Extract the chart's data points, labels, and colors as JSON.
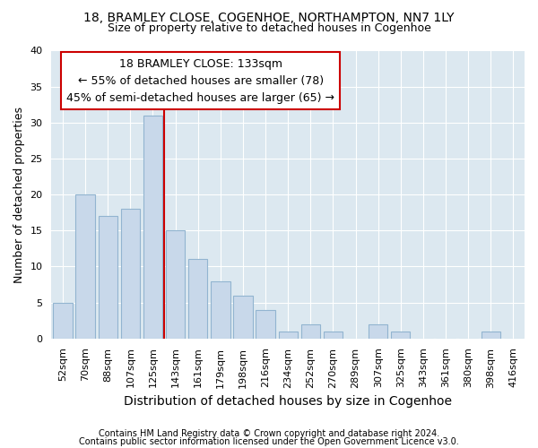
{
  "title": "18, BRAMLEY CLOSE, COGENHOE, NORTHAMPTON, NN7 1LY",
  "subtitle": "Size of property relative to detached houses in Cogenhoe",
  "xlabel": "Distribution of detached houses by size in Cogenhoe",
  "ylabel": "Number of detached properties",
  "bar_labels": [
    "52sqm",
    "70sqm",
    "88sqm",
    "107sqm",
    "125sqm",
    "143sqm",
    "161sqm",
    "179sqm",
    "198sqm",
    "216sqm",
    "234sqm",
    "252sqm",
    "270sqm",
    "289sqm",
    "307sqm",
    "325sqm",
    "343sqm",
    "361sqm",
    "380sqm",
    "398sqm",
    "416sqm"
  ],
  "bar_values": [
    5,
    20,
    17,
    18,
    31,
    15,
    11,
    8,
    6,
    4,
    1,
    2,
    1,
    0,
    2,
    1,
    0,
    0,
    0,
    1,
    0
  ],
  "bar_color": "#c8d8ea",
  "bar_edge_color": "#92b4d0",
  "ref_line_x": 4.5,
  "ref_line_color": "#cc0000",
  "annotation_title": "18 BRAMLEY CLOSE: 133sqm",
  "annotation_line1": "← 55% of detached houses are smaller (78)",
  "annotation_line2": "45% of semi-detached houses are larger (65) →",
  "box_facecolor": "#ffffff",
  "box_edgecolor": "#cc0000",
  "ylim": [
    0,
    40
  ],
  "yticks": [
    0,
    5,
    10,
    15,
    20,
    25,
    30,
    35,
    40
  ],
  "plot_bg_color": "#dce8f0",
  "grid_color": "#ffffff",
  "fig_bg_color": "#ffffff",
  "title_fontsize": 10,
  "subtitle_fontsize": 9,
  "ylabel_fontsize": 9,
  "xlabel_fontsize": 10,
  "tick_fontsize": 8,
  "annotation_fontsize": 9,
  "footnote_fontsize": 7,
  "footnote1": "Contains HM Land Registry data © Crown copyright and database right 2024.",
  "footnote2": "Contains public sector information licensed under the Open Government Licence v3.0."
}
